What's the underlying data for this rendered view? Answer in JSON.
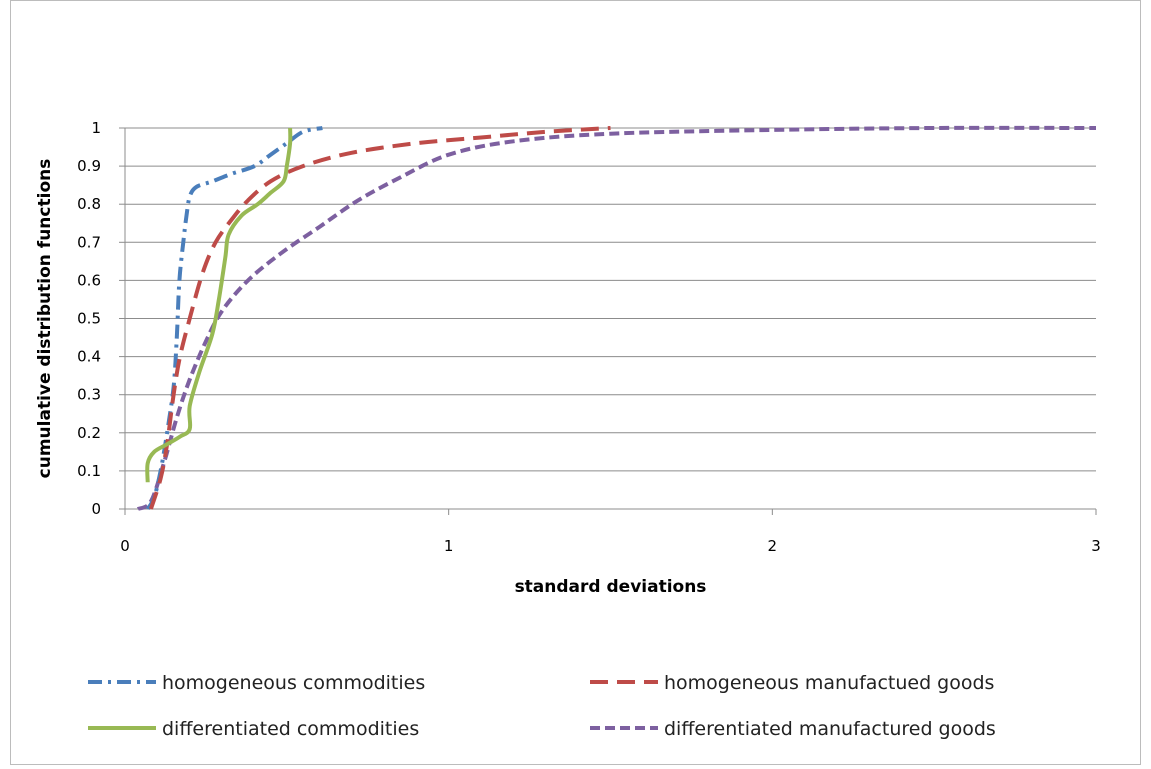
{
  "chart_data": {
    "type": "line",
    "title": "",
    "xlabel": "standard deviations",
    "ylabel": "cumulative distribution functions",
    "xlim": [
      0,
      3
    ],
    "ylim": [
      0,
      1
    ],
    "xticks": [
      0,
      1,
      2,
      3
    ],
    "yticks": [
      0,
      0.1,
      0.2,
      0.3,
      0.4,
      0.5,
      0.6,
      0.7,
      0.8,
      0.9,
      1
    ],
    "grid": "horizontal",
    "legend_position": "bottom",
    "series": [
      {
        "name": "homogeneous commodities",
        "color": "#4a7ebb",
        "style": "dash-dot",
        "points": [
          [
            0.07,
            0
          ],
          [
            0.09,
            0.03
          ],
          [
            0.11,
            0.1
          ],
          [
            0.13,
            0.2
          ],
          [
            0.15,
            0.32
          ],
          [
            0.16,
            0.45
          ],
          [
            0.165,
            0.55
          ],
          [
            0.17,
            0.62
          ],
          [
            0.18,
            0.7
          ],
          [
            0.19,
            0.77
          ],
          [
            0.2,
            0.82
          ],
          [
            0.22,
            0.845
          ],
          [
            0.27,
            0.86
          ],
          [
            0.33,
            0.88
          ],
          [
            0.4,
            0.9
          ],
          [
            0.45,
            0.93
          ],
          [
            0.5,
            0.96
          ],
          [
            0.55,
            0.99
          ],
          [
            0.61,
            1.0
          ]
        ]
      },
      {
        "name": "homogeneous manufactued goods",
        "color": "#be4b48",
        "style": "dash",
        "points": [
          [
            0.08,
            0
          ],
          [
            0.11,
            0.08
          ],
          [
            0.13,
            0.17
          ],
          [
            0.15,
            0.3
          ],
          [
            0.17,
            0.4
          ],
          [
            0.2,
            0.5
          ],
          [
            0.24,
            0.62
          ],
          [
            0.28,
            0.7
          ],
          [
            0.33,
            0.76
          ],
          [
            0.38,
            0.81
          ],
          [
            0.45,
            0.86
          ],
          [
            0.55,
            0.9
          ],
          [
            0.7,
            0.935
          ],
          [
            0.9,
            0.96
          ],
          [
            1.1,
            0.975
          ],
          [
            1.3,
            0.99
          ],
          [
            1.5,
            1.0
          ]
        ]
      },
      {
        "name": "differentiated commodities",
        "color": "#98b954",
        "style": "solid",
        "points": [
          [
            0.07,
            0.07
          ],
          [
            0.07,
            0.12
          ],
          [
            0.09,
            0.15
          ],
          [
            0.13,
            0.17
          ],
          [
            0.17,
            0.19
          ],
          [
            0.2,
            0.21
          ],
          [
            0.2,
            0.27
          ],
          [
            0.23,
            0.36
          ],
          [
            0.27,
            0.46
          ],
          [
            0.29,
            0.55
          ],
          [
            0.31,
            0.66
          ],
          [
            0.32,
            0.72
          ],
          [
            0.36,
            0.77
          ],
          [
            0.41,
            0.8
          ],
          [
            0.45,
            0.83
          ],
          [
            0.49,
            0.86
          ],
          [
            0.5,
            0.9
          ],
          [
            0.51,
            0.96
          ],
          [
            0.51,
            1.0
          ]
        ]
      },
      {
        "name": "differentiated manufactured goods",
        "color": "#7d60a0",
        "style": "short-dash",
        "points": [
          [
            0.04,
            0
          ],
          [
            0.08,
            0.02
          ],
          [
            0.12,
            0.12
          ],
          [
            0.16,
            0.24
          ],
          [
            0.2,
            0.34
          ],
          [
            0.25,
            0.44
          ],
          [
            0.3,
            0.52
          ],
          [
            0.38,
            0.6
          ],
          [
            0.48,
            0.67
          ],
          [
            0.6,
            0.74
          ],
          [
            0.72,
            0.81
          ],
          [
            0.85,
            0.87
          ],
          [
            1.0,
            0.93
          ],
          [
            1.2,
            0.965
          ],
          [
            1.5,
            0.985
          ],
          [
            2.0,
            0.995
          ],
          [
            2.5,
            1.0
          ],
          [
            3.0,
            1.0
          ]
        ]
      }
    ]
  }
}
